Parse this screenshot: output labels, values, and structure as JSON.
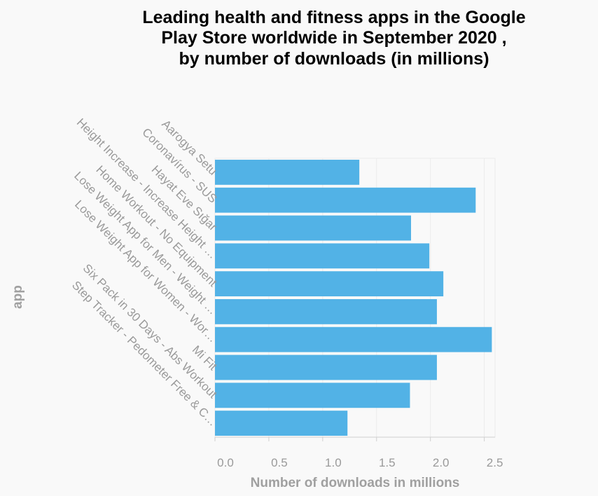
{
  "colors": {
    "bar": "#52b2e6",
    "grid": "#ebebeb",
    "axis": "#cfcfcf",
    "background": "#f9f9f9"
  },
  "chart_data": {
    "type": "bar",
    "orientation": "horizontal",
    "title": "Leading health and fitness apps in the Google Play Store worldwide in September 2020 , by number of downloads (in millions)",
    "title_lines": [
      "Leading health and fitness apps in the Google",
      "Play Store worldwide in September 2020 ,",
      "by number of downloads (in millions)"
    ],
    "xlabel": "Number of downloads in millions",
    "ylabel": "app",
    "categories": [
      "Aarogya Setu",
      "Coronavírus - SUS",
      "Hayat Eve Sığar",
      "Height Increase - Increase Height …",
      "Home Workout - No Equipment",
      "Lose Weight App for Men - Weight …",
      "Lose Weight App for Women - Wor…",
      "Mi Fit",
      "Six Pack in 30 Days - Abs Workout",
      "Step Tracker - Pedometer Free & C…"
    ],
    "values": [
      1.34,
      2.42,
      1.82,
      1.99,
      2.12,
      2.06,
      2.57,
      2.06,
      1.81,
      1.23
    ],
    "xlim": [
      0,
      2.6
    ],
    "xticks": [
      0,
      0.5,
      1.0,
      1.5,
      2.0,
      2.5
    ],
    "xtick_labels": [
      "0.0",
      "0.5",
      "1.0",
      "1.5",
      "2.0",
      "2.5"
    ],
    "grid": true
  }
}
